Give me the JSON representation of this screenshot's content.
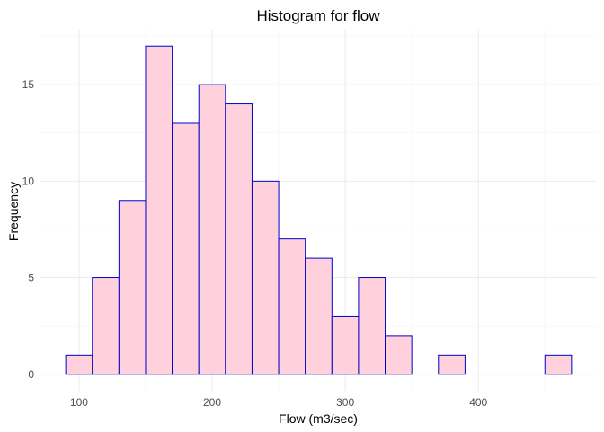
{
  "chart_data": {
    "type": "bar",
    "subtype": "histogram",
    "title": "Histogram for flow",
    "xlabel": "Flow (m3/sec)",
    "ylabel": "Frequency",
    "bins": [
      {
        "x0": 90,
        "x1": 110,
        "count": 1
      },
      {
        "x0": 110,
        "x1": 130,
        "count": 5
      },
      {
        "x0": 130,
        "x1": 150,
        "count": 9
      },
      {
        "x0": 150,
        "x1": 170,
        "count": 17
      },
      {
        "x0": 170,
        "x1": 190,
        "count": 13
      },
      {
        "x0": 190,
        "x1": 210,
        "count": 15
      },
      {
        "x0": 210,
        "x1": 230,
        "count": 14
      },
      {
        "x0": 230,
        "x1": 250,
        "count": 10
      },
      {
        "x0": 250,
        "x1": 270,
        "count": 7
      },
      {
        "x0": 270,
        "x1": 290,
        "count": 6
      },
      {
        "x0": 290,
        "x1": 310,
        "count": 3
      },
      {
        "x0": 310,
        "x1": 330,
        "count": 5
      },
      {
        "x0": 330,
        "x1": 350,
        "count": 2
      },
      {
        "x0": 350,
        "x1": 370,
        "count": 0
      },
      {
        "x0": 370,
        "x1": 390,
        "count": 1
      },
      {
        "x0": 390,
        "x1": 410,
        "count": 0
      },
      {
        "x0": 410,
        "x1": 430,
        "count": 0
      },
      {
        "x0": 430,
        "x1": 450,
        "count": 0
      },
      {
        "x0": 450,
        "x1": 470,
        "count": 1
      }
    ],
    "xticks": [
      100,
      200,
      300,
      400
    ],
    "yticks": [
      0,
      5,
      10,
      15
    ],
    "xlim": [
      71,
      489
    ],
    "ylim": [
      -0.85,
      17.85
    ],
    "grid": true,
    "colors": {
      "bar_fill": "#ffd1dc",
      "bar_stroke": "#0000cc"
    }
  }
}
